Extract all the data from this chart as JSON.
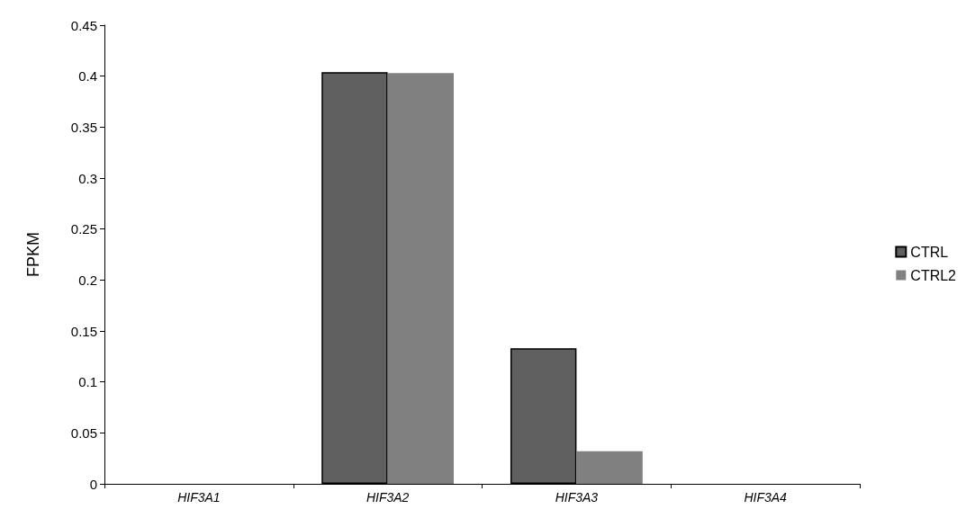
{
  "chart_data": {
    "type": "bar",
    "ylabel": "FPKM",
    "categories": [
      "HIF3A1",
      "HIF3A2",
      "HIF3A3",
      "HIF3A4"
    ],
    "series": [
      {
        "name": "CTRL",
        "color": "#606060",
        "values": [
          0,
          0.404,
          0.133,
          0
        ]
      },
      {
        "name": "CTRL2",
        "color": "#808080",
        "values": [
          0,
          0.403,
          0.032,
          0
        ]
      }
    ],
    "ylim": [
      0,
      0.45
    ],
    "yticks": [
      0,
      0.05,
      0.1,
      0.15,
      0.2,
      0.25,
      0.3,
      0.35,
      0.4,
      0.45
    ],
    "grid": false,
    "legend": "right"
  }
}
